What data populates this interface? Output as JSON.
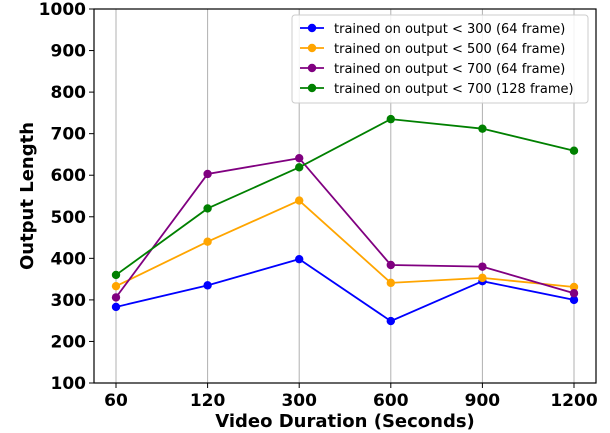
{
  "chart_data": {
    "type": "line",
    "title": "",
    "xlabel": "Video Duration (Seconds)",
    "ylabel": "Output Length",
    "categories": [
      "60",
      "120",
      "300",
      "600",
      "900",
      "1200"
    ],
    "ylim": [
      100,
      1000
    ],
    "yticks": [
      100,
      200,
      300,
      400,
      500,
      600,
      700,
      800,
      900,
      1000
    ],
    "grid": "vertical",
    "legend_position": "top-right",
    "series": [
      {
        "name": "trained on output < 300 (64 frame)",
        "color": "#0000ff",
        "values": [
          283,
          335,
          398,
          249,
          345,
          300
        ]
      },
      {
        "name": "trained on output < 500 (64 frame)",
        "color": "#ffa500",
        "values": [
          333,
          440,
          539,
          341,
          353,
          331
        ]
      },
      {
        "name": "trained on output < 700 (64 frame)",
        "color": "#800080",
        "values": [
          306,
          603,
          641,
          384,
          380,
          316
        ]
      },
      {
        "name": "trained on output < 700 (128 frame)",
        "color": "#008000",
        "values": [
          360,
          520,
          619,
          735,
          712,
          659
        ]
      }
    ]
  }
}
